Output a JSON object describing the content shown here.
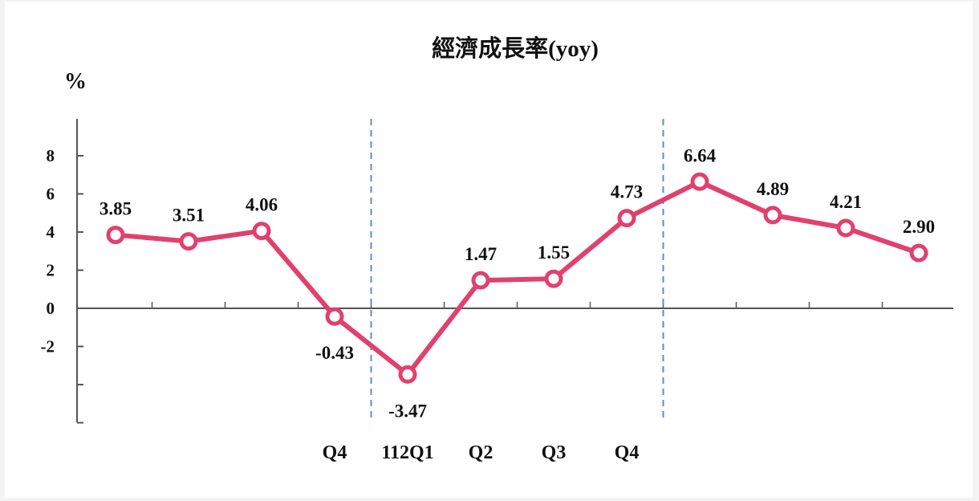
{
  "chart_data": {
    "type": "line",
    "title": "經濟成長率(yoy)",
    "y_unit": "%",
    "ylim": [
      -6,
      10
    ],
    "y_ticks": [
      "8",
      "6",
      "4",
      "2",
      "0",
      "-2"
    ],
    "categories": [
      "",
      "",
      "",
      "Q4",
      "112Q1",
      "Q2",
      "Q3",
      "Q4",
      "",
      "",
      "",
      ""
    ],
    "series": [
      {
        "values": [
          3.85,
          3.51,
          4.06,
          -0.43,
          -3.47,
          1.47,
          1.55,
          4.73,
          6.64,
          4.89,
          4.21,
          2.9
        ],
        "labels": [
          "3.85",
          "3.51",
          "4.06",
          "-0.43",
          "-3.47",
          "1.47",
          "1.55",
          "4.73",
          "6.64",
          "4.89",
          "4.21",
          "2.90"
        ],
        "color": "#e0416e"
      }
    ],
    "separators": "dashed vertical lines before 112Q1 and after Q4",
    "separator_color": "#5b8fc4",
    "grid": false
  }
}
